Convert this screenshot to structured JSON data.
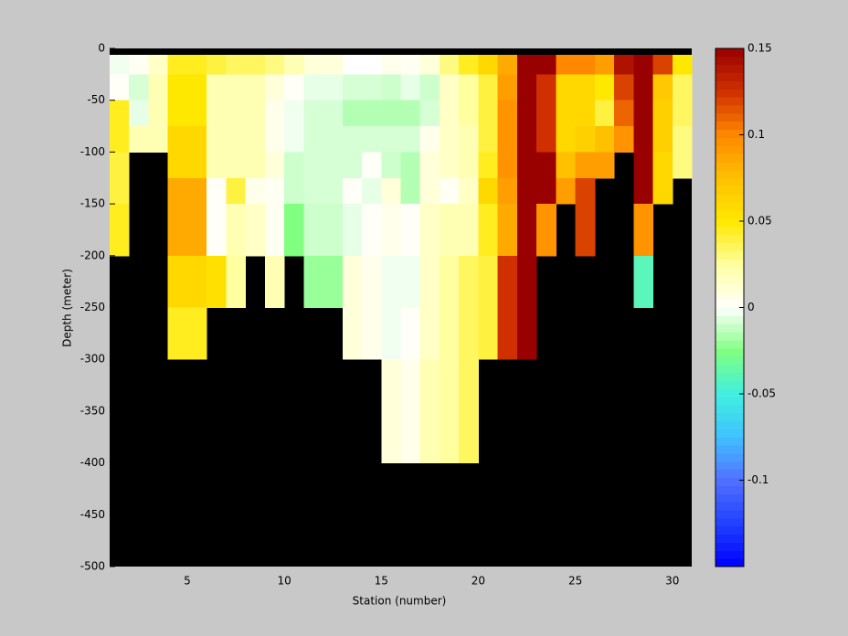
{
  "chart_data": {
    "type": "heatmap",
    "xlabel": "Station (number)",
    "ylabel": "Depth (meter)",
    "x": [
      1,
      2,
      3,
      4,
      5,
      6,
      7,
      8,
      9,
      10,
      11,
      12,
      13,
      14,
      15,
      16,
      17,
      18,
      19,
      20,
      21,
      22,
      23,
      24,
      25,
      26,
      27,
      28,
      29,
      30,
      31
    ],
    "y": [
      0,
      -6,
      -25,
      -50,
      -75,
      -100,
      -125,
      -150,
      -175,
      -200,
      -225,
      -250,
      -275,
      -300,
      -325,
      -350,
      -375,
      -400,
      -425,
      -450,
      -475,
      -500
    ],
    "values": [
      [
        null,
        -0.003,
        0.002,
        0.045,
        0.045,
        0.04,
        0.04,
        0.045,
        0.045,
        null,
        null,
        null,
        null,
        null,
        null,
        null,
        null,
        null,
        null,
        null,
        null
      ],
      [
        null,
        0.003,
        -0.008,
        -0.005,
        0.02,
        null,
        null,
        null,
        null,
        null,
        null,
        null,
        null,
        null,
        null,
        null,
        null,
        null,
        null,
        null,
        null
      ],
      [
        null,
        0.015,
        0.02,
        0.02,
        0.02,
        null,
        null,
        null,
        null,
        null,
        null,
        null,
        null,
        null,
        null,
        null,
        null,
        null,
        null,
        null,
        null
      ],
      [
        null,
        0.045,
        0.05,
        0.05,
        0.06,
        0.06,
        0.085,
        0.085,
        0.085,
        0.06,
        0.06,
        0.045,
        0.045,
        null,
        null,
        null,
        null,
        null,
        null,
        null,
        null
      ],
      [
        null,
        0.045,
        0.05,
        0.05,
        0.06,
        0.06,
        0.085,
        0.085,
        0.085,
        0.06,
        0.06,
        0.045,
        0.045,
        null,
        null,
        null,
        null,
        null,
        null,
        null,
        null
      ],
      [
        null,
        0.04,
        0.02,
        0.02,
        0.02,
        0.02,
        0.002,
        0.002,
        0.002,
        0.055,
        0.055,
        null,
        null,
        null,
        null,
        null,
        null,
        null,
        null,
        null,
        null
      ],
      [
        null,
        0.035,
        0.02,
        0.02,
        0.02,
        0.02,
        0.04,
        0.02,
        0.02,
        0.025,
        0.025,
        null,
        null,
        null,
        null,
        null,
        null,
        null,
        null,
        null,
        null
      ],
      [
        null,
        0.035,
        0.02,
        0.02,
        0.02,
        0.02,
        0.005,
        0.015,
        0.015,
        null,
        null,
        null,
        null,
        null,
        null,
        null,
        null,
        null,
        null,
        null,
        null
      ],
      [
        null,
        0.03,
        0.01,
        0.005,
        0.005,
        0.01,
        0.003,
        0.003,
        0.003,
        0.02,
        0.02,
        null,
        null,
        null,
        null,
        null,
        null,
        null,
        null,
        null,
        null
      ],
      [
        null,
        0.02,
        0.002,
        -0.003,
        -0.003,
        -0.01,
        -0.01,
        -0.025,
        -0.025,
        null,
        null,
        null,
        null,
        null,
        null,
        null,
        null,
        null,
        null,
        null,
        null
      ],
      [
        null,
        0.01,
        -0.005,
        -0.008,
        -0.008,
        -0.008,
        -0.008,
        -0.01,
        -0.01,
        -0.02,
        -0.02,
        null,
        null,
        null,
        null,
        null,
        null,
        null,
        null,
        null,
        null
      ],
      [
        null,
        0.01,
        -0.005,
        -0.008,
        -0.008,
        -0.008,
        -0.008,
        -0.01,
        -0.01,
        -0.02,
        -0.02,
        null,
        null,
        null,
        null,
        null,
        null,
        null,
        null,
        null,
        null
      ],
      [
        null,
        0,
        -0.008,
        -0.015,
        -0.008,
        -0.008,
        0.002,
        -0.005,
        -0.005,
        0.01,
        0.01,
        0.01,
        0.01,
        null,
        null,
        null,
        null,
        null,
        null,
        null,
        null
      ],
      [
        null,
        0,
        -0.008,
        -0.015,
        -0.008,
        0.002,
        -0.005,
        0.002,
        0.002,
        0.005,
        0.005,
        0.005,
        0.005,
        null,
        null,
        null,
        null,
        null,
        null,
        null,
        null
      ],
      [
        null,
        0.005,
        -0.01,
        -0.015,
        -0.008,
        -0.01,
        0.01,
        0.005,
        0.005,
        -0.003,
        -0.003,
        -0.003,
        -0.003,
        0.01,
        0.01,
        0.01,
        0.01,
        null,
        null,
        null,
        null
      ],
      [
        null,
        0.003,
        -0.005,
        -0.015,
        -0.008,
        -0.015,
        -0.015,
        0.002,
        0.002,
        -0.003,
        -0.003,
        0.002,
        0.002,
        0.005,
        0.005,
        0.005,
        0.005,
        null,
        null,
        null,
        null
      ],
      [
        null,
        0.01,
        -0.01,
        -0.008,
        0.005,
        0.01,
        0.01,
        0.015,
        0.015,
        0.015,
        0.015,
        0.015,
        0.015,
        0.02,
        0.02,
        0.02,
        0.02,
        null,
        null,
        null,
        null
      ],
      [
        null,
        0.03,
        0.015,
        0.015,
        0.015,
        0.015,
        0.003,
        0.02,
        0.02,
        0.025,
        0.025,
        0.025,
        0.025,
        0.025,
        0.025,
        0.025,
        0.025,
        null,
        null,
        null,
        null
      ],
      [
        null,
        0.045,
        0.025,
        0.025,
        0.02,
        0.02,
        0.015,
        0.02,
        0.02,
        0.035,
        0.035,
        0.035,
        0.035,
        0.035,
        0.035,
        0.035,
        0.035,
        null,
        null,
        null,
        null
      ],
      [
        null,
        0.06,
        0.04,
        0.04,
        0.04,
        0.045,
        0.06,
        0.045,
        0.045,
        0.04,
        0.04,
        0.04,
        0.04,
        null,
        null,
        null,
        null,
        null,
        null,
        null,
        null
      ],
      [
        null,
        0.085,
        0.09,
        0.095,
        0.095,
        0.095,
        0.09,
        0.085,
        0.085,
        0.125,
        0.125,
        0.125,
        0.125,
        null,
        null,
        null,
        null,
        null,
        null,
        null,
        null
      ],
      [
        null,
        0.15,
        0.15,
        0.15,
        0.15,
        0.15,
        0.15,
        0.15,
        0.15,
        0.15,
        0.15,
        0.15,
        0.15,
        null,
        null,
        null,
        null,
        null,
        null,
        null,
        null
      ],
      [
        null,
        0.15,
        0.125,
        0.125,
        0.125,
        0.15,
        0.15,
        0.095,
        0.095,
        null,
        null,
        null,
        null,
        null,
        null,
        null,
        null,
        null,
        null,
        null,
        null
      ],
      [
        null,
        0.1,
        0.06,
        0.06,
        0.06,
        0.075,
        0.09,
        null,
        null,
        null,
        null,
        null,
        null,
        null,
        null,
        null,
        null,
        null,
        null,
        null,
        null
      ],
      [
        null,
        0.1,
        0.06,
        0.06,
        0.065,
        0.09,
        0.12,
        0.12,
        0.12,
        null,
        null,
        null,
        null,
        null,
        null,
        null,
        null,
        null,
        null,
        null,
        null
      ],
      [
        null,
        0.09,
        0.05,
        0.04,
        0.075,
        0.09,
        null,
        null,
        null,
        null,
        null,
        null,
        null,
        null,
        null,
        null,
        null,
        null,
        null,
        null,
        null
      ],
      [
        null,
        0.14,
        0.12,
        0.11,
        0.095,
        null,
        null,
        null,
        null,
        null,
        null,
        null,
        null,
        null,
        null,
        null,
        null,
        null,
        null,
        null,
        null
      ],
      [
        null,
        0.15,
        0.15,
        0.15,
        0.15,
        0.15,
        0.15,
        0.095,
        0.095,
        -0.04,
        -0.04,
        null,
        null,
        null,
        null,
        null,
        null,
        null,
        null,
        null,
        null
      ],
      [
        null,
        0.12,
        0.07,
        0.065,
        0.065,
        0.06,
        0.06,
        null,
        null,
        null,
        null,
        null,
        null,
        null,
        null,
        null,
        null,
        null,
        null,
        null,
        null
      ],
      [
        null,
        0.05,
        0.035,
        0.035,
        0.03,
        0.03,
        null,
        null,
        null,
        null,
        null,
        null,
        null,
        null,
        null,
        null,
        null,
        null,
        null,
        null,
        null
      ]
    ],
    "xlim": [
      1,
      31
    ],
    "xticks": [
      5,
      10,
      15,
      20,
      25,
      30
    ],
    "ylim": [
      -500,
      0
    ],
    "yticks": [
      0,
      -50,
      -100,
      -150,
      -200,
      -250,
      -300,
      -350,
      -400,
      -450,
      -500
    ],
    "clim": [
      -0.15,
      0.15
    ],
    "cticks": [
      -0.1,
      -0.05,
      0,
      0.05,
      0.1,
      0.15
    ],
    "colormap": [
      "#0000ff",
      "#2040ff",
      "#5070ff",
      "#40c0ff",
      "#40f0e0",
      "#80ff80",
      "#ffffff",
      "#ffffa0",
      "#ffe800",
      "#ffc000",
      "#ff8800",
      "#d03000",
      "#990000"
    ]
  }
}
